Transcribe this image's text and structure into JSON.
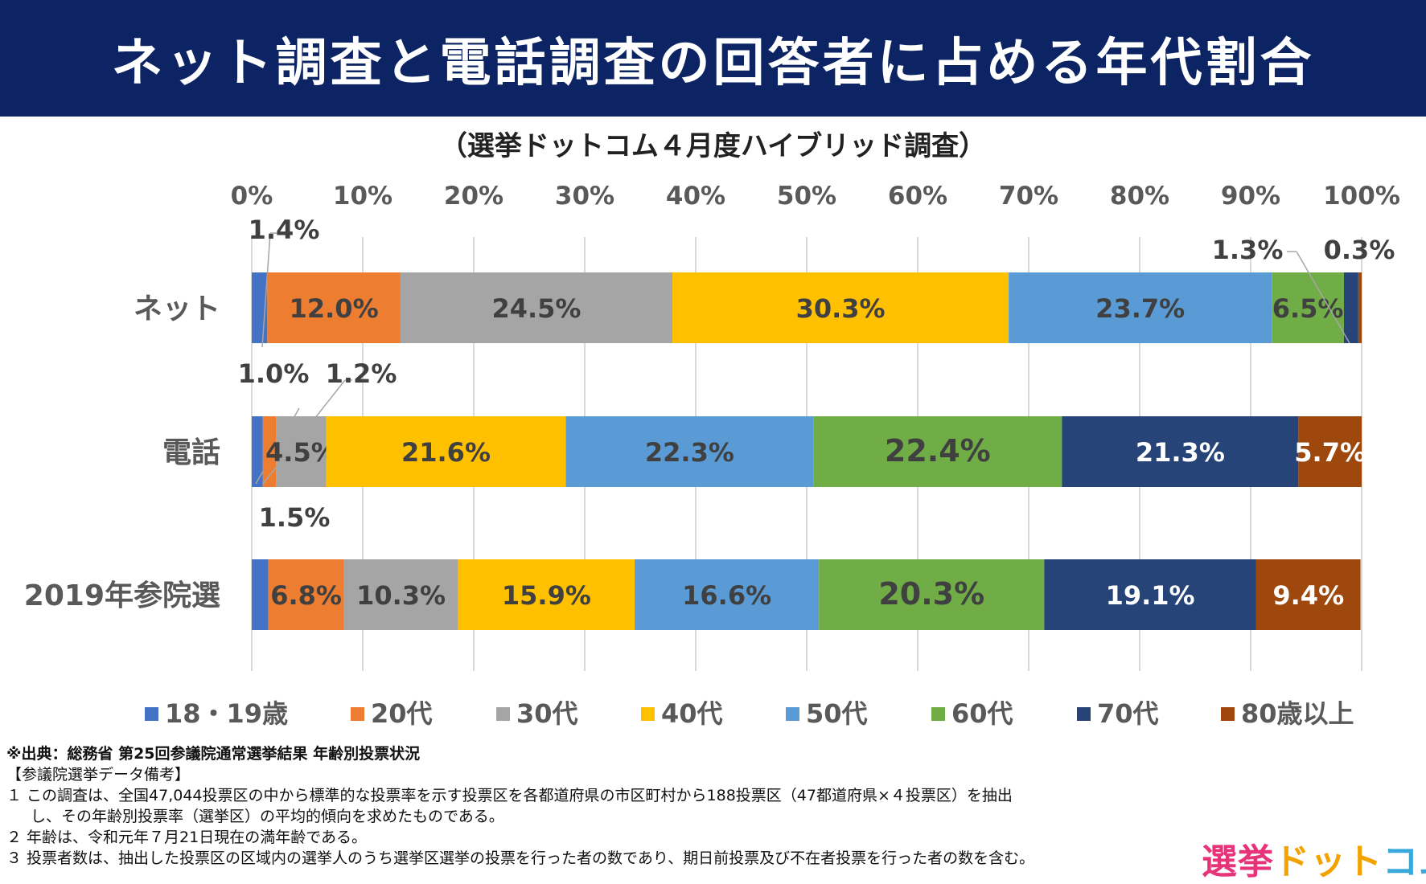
{
  "header": {
    "title": "ネット調査と電話調査の回答者に占める年代割合",
    "subtitle": "（選挙ドットコム４月度ハイブリッド調査）"
  },
  "chart_data": {
    "type": "bar",
    "orientation": "horizontal-stacked-100",
    "categories": [
      "ネット",
      "電話",
      "2019年参院選"
    ],
    "x_ticks": [
      "0%",
      "10%",
      "20%",
      "30%",
      "40%",
      "50%",
      "60%",
      "70%",
      "80%",
      "90%",
      "100%"
    ],
    "xlim": [
      0,
      100
    ],
    "grid": true,
    "legend_position": "bottom",
    "series": [
      {
        "name": "18・19歳",
        "color": "#4472c4",
        "values": [
          1.4,
          1.0,
          1.5
        ],
        "labels": [
          "1.4%",
          "1.0%",
          "1.5%"
        ],
        "label_color": "#404040"
      },
      {
        "name": "20代",
        "color": "#ed7d31",
        "values": [
          12.0,
          1.2,
          6.8
        ],
        "labels": [
          "12.0%",
          "1.2%",
          "6.8%"
        ],
        "label_color": "#404040"
      },
      {
        "name": "30代",
        "color": "#a5a5a5",
        "values": [
          24.5,
          4.5,
          10.3
        ],
        "labels": [
          "24.5%",
          "4.5%",
          "10.3%"
        ],
        "label_color": "#404040"
      },
      {
        "name": "40代",
        "color": "#ffc000",
        "values": [
          30.3,
          21.6,
          15.9
        ],
        "labels": [
          "30.3%",
          "21.6%",
          "15.9%"
        ],
        "label_color": "#404040"
      },
      {
        "name": "50代",
        "color": "#5b9bd5",
        "values": [
          23.7,
          22.3,
          16.6
        ],
        "labels": [
          "23.7%",
          "22.3%",
          "16.6%"
        ],
        "label_color": "#404040"
      },
      {
        "name": "60代",
        "color": "#70ad47",
        "values": [
          6.5,
          22.4,
          20.3
        ],
        "labels": [
          "6.5%",
          "22.4%",
          "20.3%"
        ],
        "label_color": "#404040"
      },
      {
        "name": "70代",
        "color": "#264478",
        "values": [
          1.3,
          21.3,
          19.1
        ],
        "labels": [
          "1.3%",
          "21.3%",
          "19.1%"
        ],
        "label_color": "#ffffff"
      },
      {
        "name": "80歳以上",
        "color": "#9e480e",
        "values": [
          0.3,
          5.7,
          9.4
        ],
        "labels": [
          "0.3%",
          "5.7%",
          "9.4%"
        ],
        "label_color": "#ffffff"
      }
    ]
  },
  "notes": {
    "source": "※出典：総務省 第25回参議院通常選挙結果 年齢別投票状況",
    "bracket": "【参議院選挙データ備考】",
    "line1": "１ この調査は、全国47,044投票区の中から標準的な投票率を示す投票区を各都道府県の市区町村から188投票区（47都道府県×４投票区）を抽出",
    "line1b": "し、その年齢別投票率（選挙区）の平均的傾向を求めたものである。",
    "line2": "２ 年齢は、令和元年７月21日現在の満年齢である。",
    "line3": "３ 投票者数は、抽出した投票区の区域内の選挙人のうち選挙区選挙の投票を行った者の数であり、期日前投票及び不在者投票を行った者の数を含む。"
  },
  "logo": {
    "part1": "選挙",
    "part2": "ドット",
    "part3": "コム"
  }
}
